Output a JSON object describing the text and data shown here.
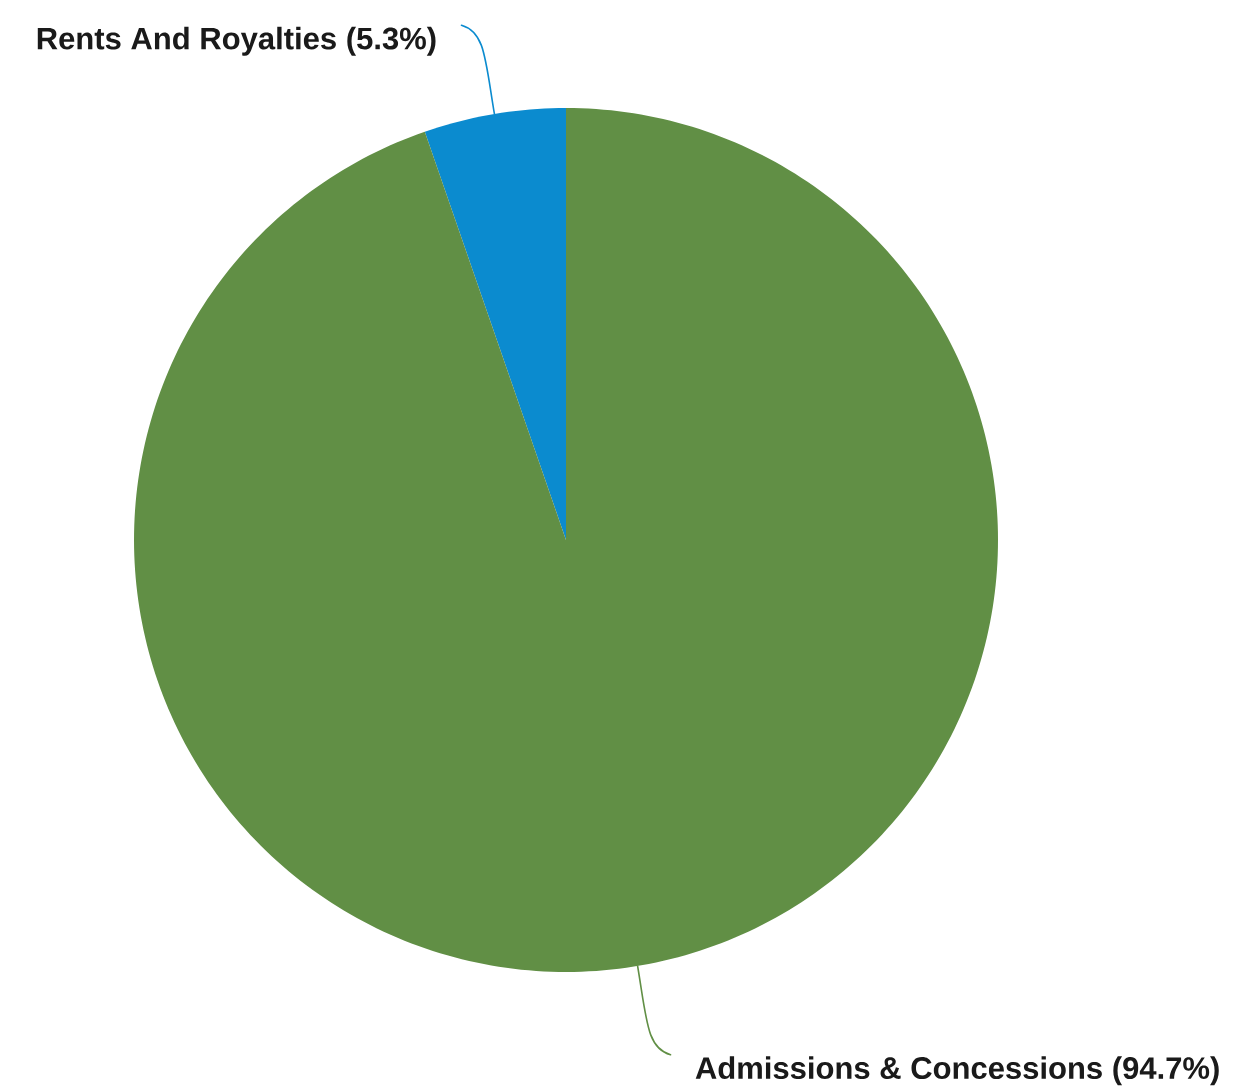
{
  "chart_data": {
    "type": "pie",
    "categories": [
      "Rents And Royalties",
      "Admissions & Concessions"
    ],
    "values": [
      5.3,
      94.7
    ],
    "colors": [
      "#0b8bcf",
      "#618f45"
    ],
    "value_labels": [
      "(5.3%)",
      "(94.7%)"
    ]
  }
}
